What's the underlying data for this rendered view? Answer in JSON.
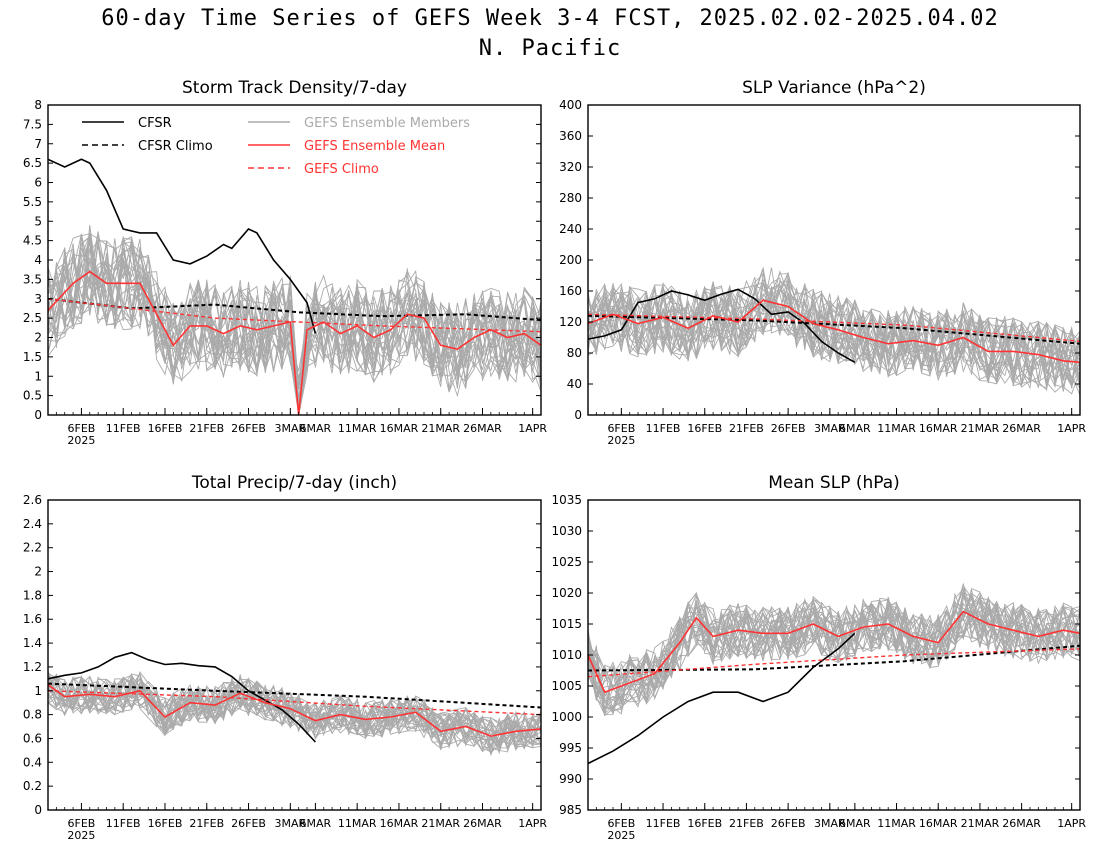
{
  "title_line1": "60-day Time Series of GEFS Week 3-4 FCST, 2025.02.02-2025.04.02",
  "title_line2": "N. Pacific",
  "x_tick_labels": [
    "6FEB",
    "11FEB",
    "16FEB",
    "21FEB",
    "26FEB",
    "3MAR",
    "6MAR",
    "11MAR",
    "16MAR",
    "21MAR",
    "26MAR",
    "1APR"
  ],
  "x_year_label": "2025",
  "legend": {
    "cfsr": "CFSR",
    "cfsr_climo": "CFSR Climo",
    "members": "GEFS Ensemble Members",
    "mean": "GEFS Ensemble Mean",
    "gefs_climo": "GEFS Climo"
  },
  "colors": {
    "cfsr": "#000000",
    "members": "#aaaaaa",
    "mean": "#ff3333",
    "gefs_climo": "#ff3333"
  },
  "chart_data": [
    {
      "type": "line",
      "title": "Storm Track Density/7-day",
      "x_start": "2025-02-02",
      "x_end": "2025-04-02",
      "ylim": [
        0,
        8
      ],
      "y_ticks": [
        "0",
        "0.5",
        "1",
        "1.5",
        "2",
        "2.5",
        "3",
        "3.5",
        "4",
        "4.5",
        "5",
        "5.5",
        "6",
        "6.5",
        "7",
        "7.5",
        "8"
      ],
      "series": [
        {
          "name": "CFSR",
          "x": [
            "2025-02-02",
            "2025-02-04",
            "2025-02-06",
            "2025-02-07",
            "2025-02-09",
            "2025-02-11",
            "2025-02-13",
            "2025-02-15",
            "2025-02-17",
            "2025-02-19",
            "2025-02-21",
            "2025-02-23",
            "2025-02-24",
            "2025-02-26",
            "2025-02-27",
            "2025-03-01",
            "2025-03-03",
            "2025-03-05",
            "2025-03-06"
          ],
          "values": [
            6.6,
            6.4,
            6.6,
            6.5,
            5.8,
            4.8,
            4.7,
            4.7,
            4.0,
            3.9,
            4.1,
            4.4,
            4.3,
            4.8,
            4.7,
            4.0,
            3.5,
            2.9,
            2.1
          ]
        },
        {
          "name": "CFSR Climo",
          "x": [
            "2025-02-02",
            "2025-02-12",
            "2025-02-22",
            "2025-03-04",
            "2025-03-14",
            "2025-03-24",
            "2025-04-02"
          ],
          "values": [
            3.0,
            2.75,
            2.85,
            2.65,
            2.55,
            2.6,
            2.45
          ]
        },
        {
          "name": "GEFS Ensemble Mean",
          "x": [
            "2025-02-02",
            "2025-02-05",
            "2025-02-07",
            "2025-02-09",
            "2025-02-11",
            "2025-02-13",
            "2025-02-15",
            "2025-02-17",
            "2025-02-19",
            "2025-02-21",
            "2025-02-23",
            "2025-02-25",
            "2025-02-27",
            "2025-03-01",
            "2025-03-03",
            "2025-03-04",
            "2025-03-05",
            "2025-03-07",
            "2025-03-09",
            "2025-03-11",
            "2025-03-13",
            "2025-03-15",
            "2025-03-17",
            "2025-03-19",
            "2025-03-21",
            "2025-03-23",
            "2025-03-25",
            "2025-03-27",
            "2025-03-29",
            "2025-03-31",
            "2025-04-02"
          ],
          "values": [
            2.7,
            3.4,
            3.7,
            3.4,
            3.4,
            3.4,
            2.6,
            1.8,
            2.3,
            2.3,
            2.1,
            2.3,
            2.2,
            2.3,
            2.4,
            0.0,
            2.2,
            2.4,
            2.1,
            2.3,
            2.0,
            2.2,
            2.6,
            2.5,
            1.8,
            1.7,
            2.0,
            2.2,
            2.0,
            2.1,
            1.8
          ]
        },
        {
          "name": "GEFS Climo",
          "x": [
            "2025-02-02",
            "2025-02-22",
            "2025-03-14",
            "2025-04-02"
          ],
          "values": [
            3.0,
            2.5,
            2.3,
            2.15
          ]
        }
      ],
      "members": {
        "count": 30,
        "spread": 1.2
      }
    },
    {
      "type": "line",
      "title": "SLP Variance (hPa^2)",
      "x_start": "2025-02-02",
      "x_end": "2025-04-02",
      "ylim": [
        0,
        400
      ],
      "y_ticks": [
        "0",
        "40",
        "80",
        "120",
        "160",
        "200",
        "240",
        "280",
        "320",
        "360",
        "400"
      ],
      "series": [
        {
          "name": "CFSR",
          "x": [
            "2025-02-02",
            "2025-02-04",
            "2025-02-06",
            "2025-02-08",
            "2025-02-10",
            "2025-02-12",
            "2025-02-14",
            "2025-02-16",
            "2025-02-18",
            "2025-02-20",
            "2025-02-22",
            "2025-02-24",
            "2025-02-26",
            "2025-02-28",
            "2025-03-02",
            "2025-03-04",
            "2025-03-06"
          ],
          "values": [
            98,
            102,
            110,
            145,
            150,
            160,
            155,
            148,
            156,
            162,
            150,
            130,
            133,
            118,
            95,
            80,
            68
          ]
        },
        {
          "name": "CFSR Climo",
          "x": [
            "2025-02-02",
            "2025-02-22",
            "2025-03-12",
            "2025-04-02"
          ],
          "values": [
            128,
            122,
            112,
            92
          ]
        },
        {
          "name": "GEFS Ensemble Mean",
          "x": [
            "2025-02-02",
            "2025-02-05",
            "2025-02-08",
            "2025-02-11",
            "2025-02-14",
            "2025-02-17",
            "2025-02-20",
            "2025-02-23",
            "2025-02-26",
            "2025-03-01",
            "2025-03-04",
            "2025-03-07",
            "2025-03-10",
            "2025-03-13",
            "2025-03-16",
            "2025-03-19",
            "2025-03-22",
            "2025-03-25",
            "2025-03-28",
            "2025-03-31",
            "2025-04-02"
          ],
          "values": [
            118,
            130,
            118,
            126,
            112,
            128,
            120,
            148,
            140,
            118,
            110,
            100,
            92,
            96,
            90,
            100,
            82,
            82,
            78,
            70,
            68
          ]
        },
        {
          "name": "GEFS Climo",
          "x": [
            "2025-02-02",
            "2025-02-22",
            "2025-03-12",
            "2025-04-02"
          ],
          "values": [
            130,
            124,
            116,
            95
          ]
        }
      ],
      "members": {
        "count": 30,
        "spread": 45
      }
    },
    {
      "type": "line",
      "title": "Total Precip/7-day (inch)",
      "x_start": "2025-02-02",
      "x_end": "2025-04-02",
      "ylim": [
        0,
        2.6
      ],
      "y_ticks": [
        "0",
        "0.2",
        "0.4",
        "0.6",
        "0.8",
        "1",
        "1.2",
        "1.4",
        "1.6",
        "1.8",
        "2",
        "2.2",
        "2.4",
        "2.6"
      ],
      "series": [
        {
          "name": "CFSR",
          "x": [
            "2025-02-02",
            "2025-02-04",
            "2025-02-06",
            "2025-02-08",
            "2025-02-10",
            "2025-02-12",
            "2025-02-14",
            "2025-02-16",
            "2025-02-18",
            "2025-02-20",
            "2025-02-22",
            "2025-02-24",
            "2025-02-26",
            "2025-02-28",
            "2025-03-02",
            "2025-03-04",
            "2025-03-06"
          ],
          "values": [
            1.1,
            1.13,
            1.15,
            1.2,
            1.28,
            1.32,
            1.26,
            1.22,
            1.23,
            1.21,
            1.2,
            1.12,
            1.0,
            0.92,
            0.84,
            0.72,
            0.57
          ]
        },
        {
          "name": "CFSR Climo",
          "x": [
            "2025-02-02",
            "2025-02-22",
            "2025-03-12",
            "2025-04-02"
          ],
          "values": [
            1.06,
            1.0,
            0.95,
            0.86
          ]
        },
        {
          "name": "GEFS Ensemble Mean",
          "x": [
            "2025-02-02",
            "2025-02-04",
            "2025-02-07",
            "2025-02-10",
            "2025-02-13",
            "2025-02-16",
            "2025-02-19",
            "2025-02-22",
            "2025-02-25",
            "2025-02-28",
            "2025-03-03",
            "2025-03-06",
            "2025-03-09",
            "2025-03-12",
            "2025-03-15",
            "2025-03-18",
            "2025-03-21",
            "2025-03-24",
            "2025-03-27",
            "2025-03-30",
            "2025-04-02"
          ],
          "values": [
            1.05,
            0.95,
            0.97,
            0.95,
            1.0,
            0.78,
            0.9,
            0.88,
            0.98,
            0.9,
            0.85,
            0.75,
            0.8,
            0.76,
            0.78,
            0.82,
            0.66,
            0.7,
            0.62,
            0.66,
            0.68
          ]
        },
        {
          "name": "GEFS Climo",
          "x": [
            "2025-02-02",
            "2025-02-22",
            "2025-03-12",
            "2025-04-02"
          ],
          "values": [
            1.0,
            0.95,
            0.87,
            0.8
          ]
        }
      ],
      "members": {
        "count": 30,
        "spread": 0.16
      }
    },
    {
      "type": "line",
      "title": "Mean SLP (hPa)",
      "x_start": "2025-02-02",
      "x_end": "2025-04-02",
      "ylim": [
        985,
        1035
      ],
      "y_ticks": [
        "985",
        "990",
        "995",
        "1000",
        "1005",
        "1010",
        "1015",
        "1020",
        "1025",
        "1030",
        "1035"
      ],
      "series": [
        {
          "name": "CFSR",
          "x": [
            "2025-02-02",
            "2025-02-05",
            "2025-02-08",
            "2025-02-11",
            "2025-02-14",
            "2025-02-17",
            "2025-02-20",
            "2025-02-23",
            "2025-02-26",
            "2025-03-01",
            "2025-03-04",
            "2025-03-06"
          ],
          "values": [
            992.5,
            994.5,
            997,
            1000,
            1002.5,
            1004,
            1004,
            1002.5,
            1004,
            1008,
            1011,
            1013.5
          ]
        },
        {
          "name": "CFSR Climo",
          "x": [
            "2025-02-02",
            "2025-02-22",
            "2025-03-12",
            "2025-04-02"
          ],
          "values": [
            1007.5,
            1007.7,
            1009,
            1011.5
          ]
        },
        {
          "name": "GEFS Ensemble Mean",
          "x": [
            "2025-02-02",
            "2025-02-04",
            "2025-02-07",
            "2025-02-10",
            "2025-02-13",
            "2025-02-15",
            "2025-02-17",
            "2025-02-20",
            "2025-02-23",
            "2025-02-26",
            "2025-03-01",
            "2025-03-04",
            "2025-03-07",
            "2025-03-10",
            "2025-03-13",
            "2025-03-16",
            "2025-03-19",
            "2025-03-22",
            "2025-03-25",
            "2025-03-28",
            "2025-03-31",
            "2025-04-02"
          ],
          "values": [
            1010,
            1004,
            1005.5,
            1007,
            1012,
            1016,
            1013,
            1014,
            1013.5,
            1013.5,
            1015,
            1013,
            1014.5,
            1015,
            1013,
            1012,
            1017,
            1015,
            1014,
            1013,
            1014,
            1013.5
          ]
        },
        {
          "name": "GEFS Climo",
          "x": [
            "2025-02-02",
            "2025-02-22",
            "2025-03-12",
            "2025-04-02"
          ],
          "values": [
            1006.5,
            1008.5,
            1010,
            1011
          ]
        }
      ],
      "members": {
        "count": 30,
        "spread": 4.5
      }
    }
  ]
}
